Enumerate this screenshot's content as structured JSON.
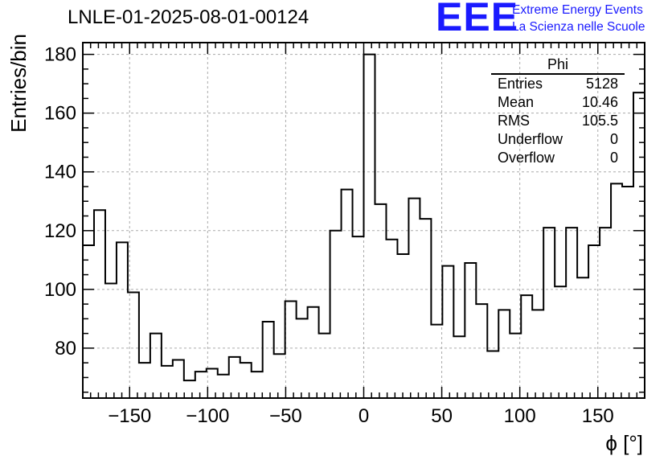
{
  "header": {
    "title": "LNLE-01-2025-08-01-00124",
    "logo_text": "EEE",
    "logo_line1": "Extreme Energy Events",
    "logo_line2": "La Scienza nelle Scuole"
  },
  "stats_box": {
    "title": "Phi",
    "rows": [
      {
        "label": "Entries",
        "value": "5128"
      },
      {
        "label": "Mean",
        "value": "10.46"
      },
      {
        "label": "RMS",
        "value": "105.5"
      },
      {
        "label": "Underflow",
        "value": "0"
      },
      {
        "label": "Overflow",
        "value": "0"
      }
    ]
  },
  "chart_data": {
    "type": "histogram",
    "title": "LNLE-01-2025-08-01-00124",
    "xlabel": "ϕ [°]",
    "ylabel": "Entries/bin",
    "xlim": [
      -180,
      180
    ],
    "ylim": [
      63,
      184
    ],
    "bin_width": 7.2,
    "x_ticks": [
      -150,
      -100,
      -50,
      0,
      50,
      100,
      150
    ],
    "y_ticks": [
      80,
      100,
      120,
      140,
      160,
      180
    ],
    "grid": true,
    "values": [
      115,
      127,
      102,
      116,
      99,
      75,
      85,
      74,
      76,
      69,
      72,
      73,
      71,
      77,
      75,
      72,
      89,
      78,
      96,
      90,
      94,
      85,
      120,
      134,
      118,
      180,
      129,
      117,
      112,
      131,
      124,
      88,
      108,
      84,
      109,
      95,
      79,
      93,
      85,
      98,
      93,
      121,
      101,
      121,
      104,
      115,
      121,
      136,
      135,
      167
    ],
    "line_color": "#000000"
  }
}
